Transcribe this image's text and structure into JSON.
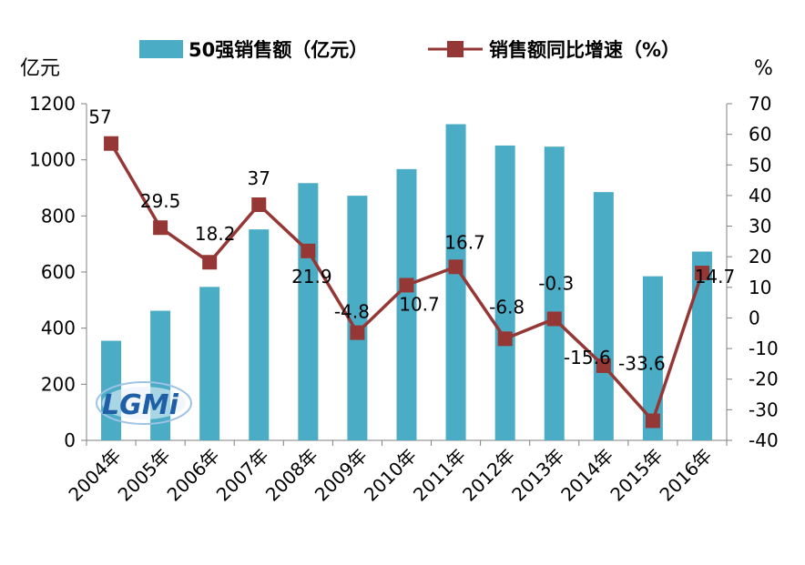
{
  "chart_data": {
    "type": "bar+line",
    "categories": [
      "2004年",
      "2005年",
      "2006年",
      "2007年",
      "2008年",
      "2009年",
      "2010年",
      "2011年",
      "2012年",
      "2013年",
      "2014年",
      "2015年",
      "2016年"
    ],
    "series": [
      {
        "name": "50强销售额（亿元）",
        "type": "bar",
        "axis": "left",
        "color": "#4BACC6",
        "values": [
          355,
          462,
          547,
          752,
          917,
          872,
          967,
          1127,
          1051,
          1047,
          885,
          585,
          673
        ]
      },
      {
        "name": "销售额同比增速（%）",
        "type": "line",
        "axis": "right",
        "color": "#953735",
        "values": [
          57,
          29.5,
          18.2,
          37,
          21.9,
          -4.8,
          10.7,
          16.7,
          -6.8,
          -0.3,
          -15.6,
          -33.6,
          14.7
        ],
        "labels": [
          "57",
          "29.5",
          "18.2",
          "37",
          "21.9",
          "-4.8",
          "10.7",
          "16.7",
          "-6.8",
          "-0.3",
          "-15.6",
          "-33.6",
          "14.7"
        ]
      }
    ],
    "y_left": {
      "unit": "亿元",
      "min": 0,
      "max": 1200,
      "ticks": [
        0,
        200,
        400,
        600,
        800,
        1000,
        1200
      ]
    },
    "y_right": {
      "unit": "%",
      "min": -40,
      "max": 70,
      "ticks": [
        -40,
        -30,
        -20,
        -10,
        0,
        10,
        20,
        30,
        40,
        50,
        60,
        70
      ]
    },
    "legend_position": "top",
    "grid": false
  },
  "logo": {
    "text": "LGMi"
  }
}
